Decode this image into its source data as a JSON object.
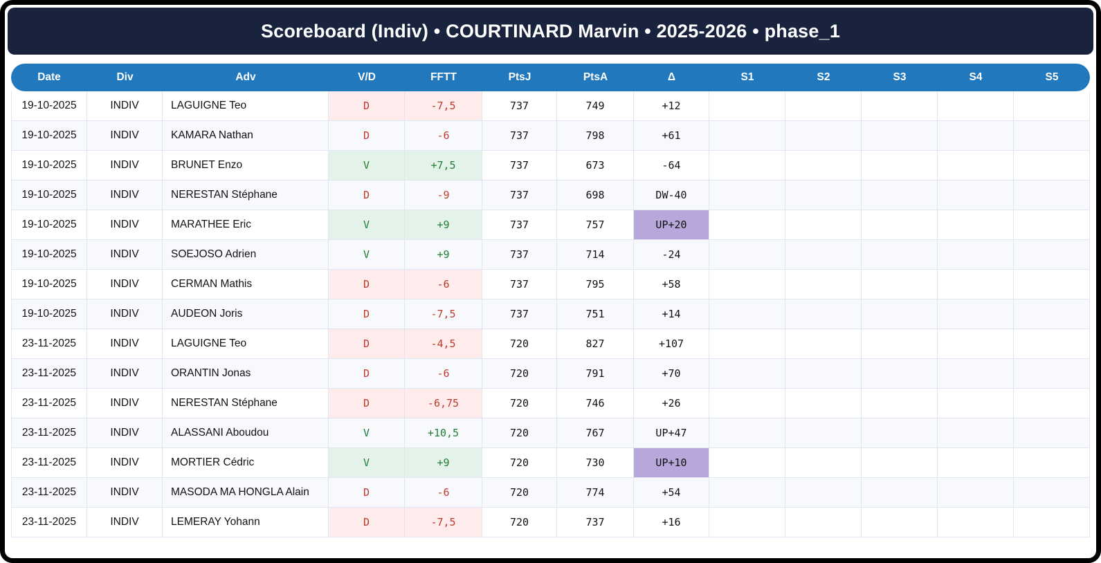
{
  "title": "Scoreboard (Indiv) • COURTINARD Marvin • 2025-2026 • phase_1",
  "table": {
    "columns": [
      "Date",
      "Div",
      "Adv",
      "V/D",
      "FFTT",
      "PtsJ",
      "PtsA",
      "Δ",
      "S1",
      "S2",
      "S3",
      "S4",
      "S5"
    ],
    "rows": [
      {
        "date": "19-10-2025",
        "div": "INDIV",
        "adv": "LAGUIGNE Teo",
        "vd": "D",
        "fftt": "-7,5",
        "ptsj": "737",
        "ptsa": "749",
        "delta": "+12",
        "delta_type": "none",
        "s1": "",
        "s2": "",
        "s3": "",
        "s4": "",
        "s5": ""
      },
      {
        "date": "19-10-2025",
        "div": "INDIV",
        "adv": "KAMARA Nathan",
        "vd": "D",
        "fftt": "-6",
        "ptsj": "737",
        "ptsa": "798",
        "delta": "+61",
        "delta_type": "none",
        "s1": "",
        "s2": "",
        "s3": "",
        "s4": "",
        "s5": ""
      },
      {
        "date": "19-10-2025",
        "div": "INDIV",
        "adv": "BRUNET Enzo",
        "vd": "V",
        "fftt": "+7,5",
        "ptsj": "737",
        "ptsa": "673",
        "delta": "-64",
        "delta_type": "none",
        "s1": "",
        "s2": "",
        "s3": "",
        "s4": "",
        "s5": ""
      },
      {
        "date": "19-10-2025",
        "div": "INDIV",
        "adv": "NERESTAN Stéphane",
        "vd": "D",
        "fftt": "-9",
        "ptsj": "737",
        "ptsa": "698",
        "delta": "DW-40",
        "delta_type": "down",
        "s1": "",
        "s2": "",
        "s3": "",
        "s4": "",
        "s5": ""
      },
      {
        "date": "19-10-2025",
        "div": "INDIV",
        "adv": "MARATHEE Eric",
        "vd": "V",
        "fftt": "+9",
        "ptsj": "737",
        "ptsa": "757",
        "delta": "UP+20",
        "delta_type": "up",
        "s1": "",
        "s2": "",
        "s3": "",
        "s4": "",
        "s5": ""
      },
      {
        "date": "19-10-2025",
        "div": "INDIV",
        "adv": "SOEJOSO Adrien",
        "vd": "V",
        "fftt": "+9",
        "ptsj": "737",
        "ptsa": "714",
        "delta": "-24",
        "delta_type": "none",
        "s1": "",
        "s2": "",
        "s3": "",
        "s4": "",
        "s5": ""
      },
      {
        "date": "19-10-2025",
        "div": "INDIV",
        "adv": "CERMAN Mathis",
        "vd": "D",
        "fftt": "-6",
        "ptsj": "737",
        "ptsa": "795",
        "delta": "+58",
        "delta_type": "none",
        "s1": "",
        "s2": "",
        "s3": "",
        "s4": "",
        "s5": ""
      },
      {
        "date": "19-10-2025",
        "div": "INDIV",
        "adv": "AUDEON Joris",
        "vd": "D",
        "fftt": "-7,5",
        "ptsj": "737",
        "ptsa": "751",
        "delta": "+14",
        "delta_type": "none",
        "s1": "",
        "s2": "",
        "s3": "",
        "s4": "",
        "s5": ""
      },
      {
        "date": "23-11-2025",
        "div": "INDIV",
        "adv": "LAGUIGNE Teo",
        "vd": "D",
        "fftt": "-4,5",
        "ptsj": "720",
        "ptsa": "827",
        "delta": "+107",
        "delta_type": "none",
        "s1": "",
        "s2": "",
        "s3": "",
        "s4": "",
        "s5": ""
      },
      {
        "date": "23-11-2025",
        "div": "INDIV",
        "adv": "ORANTIN Jonas",
        "vd": "D",
        "fftt": "-6",
        "ptsj": "720",
        "ptsa": "791",
        "delta": "+70",
        "delta_type": "none",
        "s1": "",
        "s2": "",
        "s3": "",
        "s4": "",
        "s5": ""
      },
      {
        "date": "23-11-2025",
        "div": "INDIV",
        "adv": "NERESTAN Stéphane",
        "vd": "D",
        "fftt": "-6,75",
        "ptsj": "720",
        "ptsa": "746",
        "delta": "+26",
        "delta_type": "none",
        "s1": "",
        "s2": "",
        "s3": "",
        "s4": "",
        "s5": ""
      },
      {
        "date": "23-11-2025",
        "div": "INDIV",
        "adv": "ALASSANI Aboudou",
        "vd": "V",
        "fftt": "+10,5",
        "ptsj": "720",
        "ptsa": "767",
        "delta": "UP+47",
        "delta_type": "up",
        "s1": "",
        "s2": "",
        "s3": "",
        "s4": "",
        "s5": ""
      },
      {
        "date": "23-11-2025",
        "div": "INDIV",
        "adv": "MORTIER Cédric",
        "vd": "V",
        "fftt": "+9",
        "ptsj": "720",
        "ptsa": "730",
        "delta": "UP+10",
        "delta_type": "up",
        "s1": "",
        "s2": "",
        "s3": "",
        "s4": "",
        "s5": ""
      },
      {
        "date": "23-11-2025",
        "div": "INDIV",
        "adv": "MASODA MA HONGLA Alain",
        "vd": "D",
        "fftt": "-6",
        "ptsj": "720",
        "ptsa": "774",
        "delta": "+54",
        "delta_type": "none",
        "s1": "",
        "s2": "",
        "s3": "",
        "s4": "",
        "s5": ""
      },
      {
        "date": "23-11-2025",
        "div": "INDIV",
        "adv": "LEMERAY Yohann",
        "vd": "D",
        "fftt": "-7,5",
        "ptsj": "720",
        "ptsa": "737",
        "delta": "+16",
        "delta_type": "none",
        "s1": "",
        "s2": "",
        "s3": "",
        "s4": "",
        "s5": ""
      }
    ]
  },
  "colors": {
    "banner_bg": "#19233e",
    "header_bg": "#2278bd",
    "header_text": "#ffffff",
    "row_alt_bg": "#f7f9fd",
    "cell_border": "#dfe6f1",
    "body_text": "#111111",
    "win_bg": "#e4f3ea",
    "win_text": "#1e7e34",
    "loss_bg": "#fdeceb",
    "loss_text": "#c0392b",
    "delta_up_bg": "#b7a7da",
    "delta_down_bg": "#f9c3d0"
  }
}
